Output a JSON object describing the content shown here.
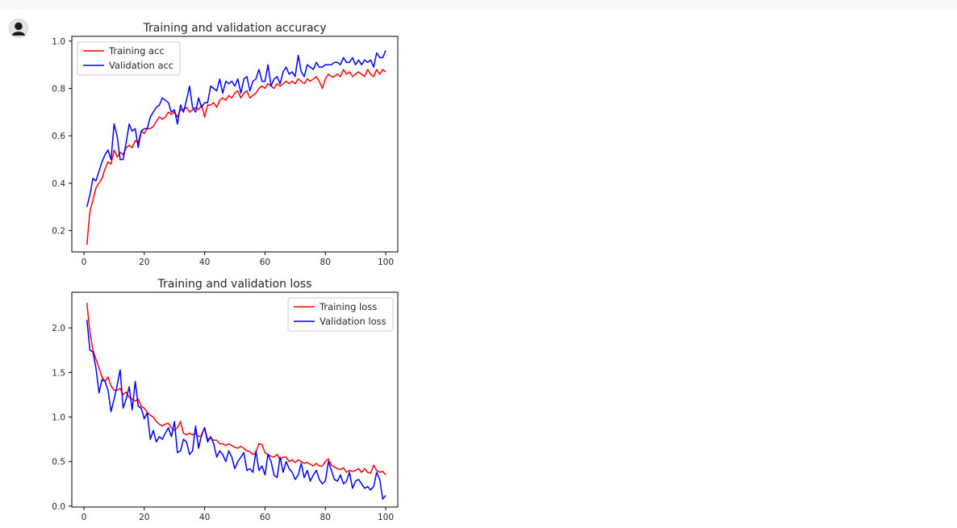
{
  "cell": {
    "avatar_icon": "user-avatar-icon"
  },
  "chart_data": [
    {
      "type": "line",
      "title": "Training and validation accuracy",
      "xlabel": "",
      "ylabel": "",
      "xlim": [
        -4,
        104
      ],
      "ylim": [
        0.11,
        1.02
      ],
      "xticks": [
        "0",
        "20",
        "40",
        "60",
        "80",
        "100"
      ],
      "yticks": [
        "0.2",
        "0.4",
        "0.6",
        "0.8",
        "1.0"
      ],
      "grid": false,
      "legend_position": "upper-left",
      "series": [
        {
          "name": "Training acc",
          "color": "#ff0000",
          "x": [
            1,
            2,
            3,
            4,
            5,
            6,
            7,
            8,
            9,
            10,
            11,
            12,
            13,
            14,
            15,
            16,
            17,
            18,
            19,
            20,
            21,
            22,
            23,
            24,
            25,
            26,
            27,
            28,
            29,
            30,
            31,
            32,
            33,
            34,
            35,
            36,
            37,
            38,
            39,
            40,
            41,
            42,
            43,
            44,
            45,
            46,
            47,
            48,
            49,
            50,
            51,
            52,
            53,
            54,
            55,
            56,
            57,
            58,
            59,
            60,
            61,
            62,
            63,
            64,
            65,
            66,
            67,
            68,
            69,
            70,
            71,
            72,
            73,
            74,
            75,
            76,
            77,
            78,
            79,
            80,
            81,
            82,
            83,
            84,
            85,
            86,
            87,
            88,
            89,
            90,
            91,
            92,
            93,
            94,
            95,
            96,
            97,
            98,
            99,
            100
          ],
          "values": [
            0.14,
            0.28,
            0.33,
            0.38,
            0.4,
            0.42,
            0.46,
            0.49,
            0.48,
            0.54,
            0.51,
            0.53,
            0.52,
            0.55,
            0.56,
            0.55,
            0.58,
            0.57,
            0.62,
            0.61,
            0.63,
            0.63,
            0.64,
            0.66,
            0.68,
            0.67,
            0.68,
            0.7,
            0.69,
            0.7,
            0.68,
            0.71,
            0.71,
            0.72,
            0.7,
            0.71,
            0.72,
            0.71,
            0.73,
            0.68,
            0.73,
            0.73,
            0.74,
            0.72,
            0.75,
            0.76,
            0.75,
            0.77,
            0.76,
            0.78,
            0.79,
            0.76,
            0.78,
            0.79,
            0.76,
            0.77,
            0.78,
            0.8,
            0.81,
            0.8,
            0.82,
            0.81,
            0.8,
            0.82,
            0.81,
            0.82,
            0.83,
            0.82,
            0.83,
            0.82,
            0.84,
            0.83,
            0.82,
            0.84,
            0.83,
            0.84,
            0.85,
            0.83,
            0.8,
            0.84,
            0.86,
            0.85,
            0.85,
            0.86,
            0.85,
            0.88,
            0.86,
            0.87,
            0.85,
            0.86,
            0.87,
            0.86,
            0.85,
            0.88,
            0.86,
            0.85,
            0.88,
            0.86,
            0.88,
            0.87
          ]
        },
        {
          "name": "Validation acc",
          "color": "#0000ff",
          "x": [
            1,
            2,
            3,
            4,
            5,
            6,
            7,
            8,
            9,
            10,
            11,
            12,
            13,
            14,
            15,
            16,
            17,
            18,
            19,
            20,
            21,
            22,
            23,
            24,
            25,
            26,
            27,
            28,
            29,
            30,
            31,
            32,
            33,
            34,
            35,
            36,
            37,
            38,
            39,
            40,
            41,
            42,
            43,
            44,
            45,
            46,
            47,
            48,
            49,
            50,
            51,
            52,
            53,
            54,
            55,
            56,
            57,
            58,
            59,
            60,
            61,
            62,
            63,
            64,
            65,
            66,
            67,
            68,
            69,
            70,
            71,
            72,
            73,
            74,
            75,
            76,
            77,
            78,
            79,
            80,
            81,
            82,
            83,
            84,
            85,
            86,
            87,
            88,
            89,
            90,
            91,
            92,
            93,
            94,
            95,
            96,
            97,
            98,
            99,
            100
          ],
          "values": [
            0.3,
            0.35,
            0.42,
            0.41,
            0.45,
            0.49,
            0.52,
            0.54,
            0.5,
            0.65,
            0.6,
            0.5,
            0.5,
            0.57,
            0.65,
            0.62,
            0.63,
            0.55,
            0.62,
            0.63,
            0.63,
            0.68,
            0.7,
            0.72,
            0.73,
            0.76,
            0.75,
            0.74,
            0.7,
            0.71,
            0.65,
            0.73,
            0.7,
            0.75,
            0.81,
            0.72,
            0.7,
            0.76,
            0.72,
            0.74,
            0.74,
            0.81,
            0.8,
            0.79,
            0.84,
            0.78,
            0.83,
            0.82,
            0.83,
            0.81,
            0.84,
            0.78,
            0.84,
            0.85,
            0.79,
            0.83,
            0.84,
            0.88,
            0.83,
            0.83,
            0.9,
            0.81,
            0.84,
            0.85,
            0.82,
            0.87,
            0.89,
            0.86,
            0.87,
            0.85,
            0.94,
            0.87,
            0.85,
            0.9,
            0.89,
            0.88,
            0.91,
            0.89,
            0.89,
            0.9,
            0.9,
            0.9,
            0.91,
            0.91,
            0.9,
            0.93,
            0.91,
            0.91,
            0.93,
            0.9,
            0.92,
            0.9,
            0.92,
            0.91,
            0.92,
            0.89,
            0.95,
            0.93,
            0.93,
            0.96
          ]
        }
      ]
    },
    {
      "type": "line",
      "title": "Training and validation loss",
      "xlabel": "",
      "ylabel": "",
      "xlim": [
        -4,
        104
      ],
      "ylim": [
        -0.01,
        2.4
      ],
      "xticks": [
        "0",
        "20",
        "40",
        "60",
        "80",
        "100"
      ],
      "yticks": [
        "0.0",
        "0.5",
        "1.0",
        "1.5",
        "2.0"
      ],
      "grid": false,
      "legend_position": "upper-right",
      "series": [
        {
          "name": "Training loss",
          "color": "#ff0000",
          "x": [
            1,
            2,
            3,
            4,
            5,
            6,
            7,
            8,
            9,
            10,
            11,
            12,
            13,
            14,
            15,
            16,
            17,
            18,
            19,
            20,
            21,
            22,
            23,
            24,
            25,
            26,
            27,
            28,
            29,
            30,
            31,
            32,
            33,
            34,
            35,
            36,
            37,
            38,
            39,
            40,
            41,
            42,
            43,
            44,
            45,
            46,
            47,
            48,
            49,
            50,
            51,
            52,
            53,
            54,
            55,
            56,
            57,
            58,
            59,
            60,
            61,
            62,
            63,
            64,
            65,
            66,
            67,
            68,
            69,
            70,
            71,
            72,
            73,
            74,
            75,
            76,
            77,
            78,
            79,
            80,
            81,
            82,
            83,
            84,
            85,
            86,
            87,
            88,
            89,
            90,
            91,
            92,
            93,
            94,
            95,
            96,
            97,
            98,
            99,
            100
          ],
          "values": [
            2.28,
            1.95,
            1.75,
            1.65,
            1.55,
            1.45,
            1.4,
            1.45,
            1.35,
            1.3,
            1.3,
            1.32,
            1.25,
            1.28,
            1.22,
            1.2,
            1.18,
            1.2,
            1.12,
            1.1,
            1.05,
            1.02,
            1.0,
            0.95,
            0.92,
            0.9,
            0.92,
            0.93,
            0.88,
            0.85,
            0.88,
            0.95,
            0.82,
            0.8,
            0.82,
            0.8,
            0.82,
            0.78,
            0.79,
            0.88,
            0.75,
            0.76,
            0.74,
            0.74,
            0.7,
            0.7,
            0.68,
            0.7,
            0.68,
            0.66,
            0.65,
            0.67,
            0.65,
            0.62,
            0.61,
            0.58,
            0.6,
            0.7,
            0.69,
            0.6,
            0.58,
            0.56,
            0.55,
            0.58,
            0.52,
            0.55,
            0.55,
            0.5,
            0.52,
            0.49,
            0.52,
            0.5,
            0.48,
            0.49,
            0.47,
            0.45,
            0.48,
            0.45,
            0.45,
            0.5,
            0.53,
            0.46,
            0.44,
            0.42,
            0.41,
            0.43,
            0.38,
            0.4,
            0.39,
            0.4,
            0.42,
            0.38,
            0.42,
            0.38,
            0.37,
            0.46,
            0.4,
            0.38,
            0.39,
            0.35
          ]
        },
        {
          "name": "Validation loss",
          "color": "#0000ff",
          "x": [
            1,
            2,
            3,
            4,
            5,
            6,
            7,
            8,
            9,
            10,
            11,
            12,
            13,
            14,
            15,
            16,
            17,
            18,
            19,
            20,
            21,
            22,
            23,
            24,
            25,
            26,
            27,
            28,
            29,
            30,
            31,
            32,
            33,
            34,
            35,
            36,
            37,
            38,
            39,
            40,
            41,
            42,
            43,
            44,
            45,
            46,
            47,
            48,
            49,
            50,
            51,
            52,
            53,
            54,
            55,
            56,
            57,
            58,
            59,
            60,
            61,
            62,
            63,
            64,
            65,
            66,
            67,
            68,
            69,
            70,
            71,
            72,
            73,
            74,
            75,
            76,
            77,
            78,
            79,
            80,
            81,
            82,
            83,
            84,
            85,
            86,
            87,
            88,
            89,
            90,
            91,
            92,
            93,
            94,
            95,
            96,
            97,
            98,
            99,
            100
          ],
          "values": [
            2.09,
            1.75,
            1.73,
            1.55,
            1.27,
            1.42,
            1.4,
            1.3,
            1.06,
            1.2,
            1.35,
            1.53,
            1.1,
            1.2,
            1.34,
            1.08,
            1.4,
            1.12,
            1.1,
            0.98,
            1.05,
            0.75,
            0.85,
            0.72,
            0.78,
            0.75,
            0.82,
            0.88,
            0.78,
            0.95,
            0.6,
            0.62,
            0.75,
            0.72,
            0.58,
            0.62,
            0.9,
            0.65,
            0.8,
            0.88,
            0.72,
            0.78,
            0.7,
            0.55,
            0.62,
            0.58,
            0.5,
            0.62,
            0.55,
            0.42,
            0.5,
            0.55,
            0.6,
            0.4,
            0.42,
            0.38,
            0.62,
            0.4,
            0.45,
            0.35,
            0.58,
            0.5,
            0.35,
            0.32,
            0.55,
            0.38,
            0.5,
            0.42,
            0.38,
            0.3,
            0.35,
            0.48,
            0.32,
            0.4,
            0.28,
            0.35,
            0.4,
            0.3,
            0.25,
            0.28,
            0.5,
            0.4,
            0.3,
            0.28,
            0.35,
            0.25,
            0.28,
            0.38,
            0.2,
            0.28,
            0.3,
            0.25,
            0.2,
            0.22,
            0.18,
            0.22,
            0.38,
            0.3,
            0.08,
            0.12
          ]
        }
      ]
    }
  ]
}
